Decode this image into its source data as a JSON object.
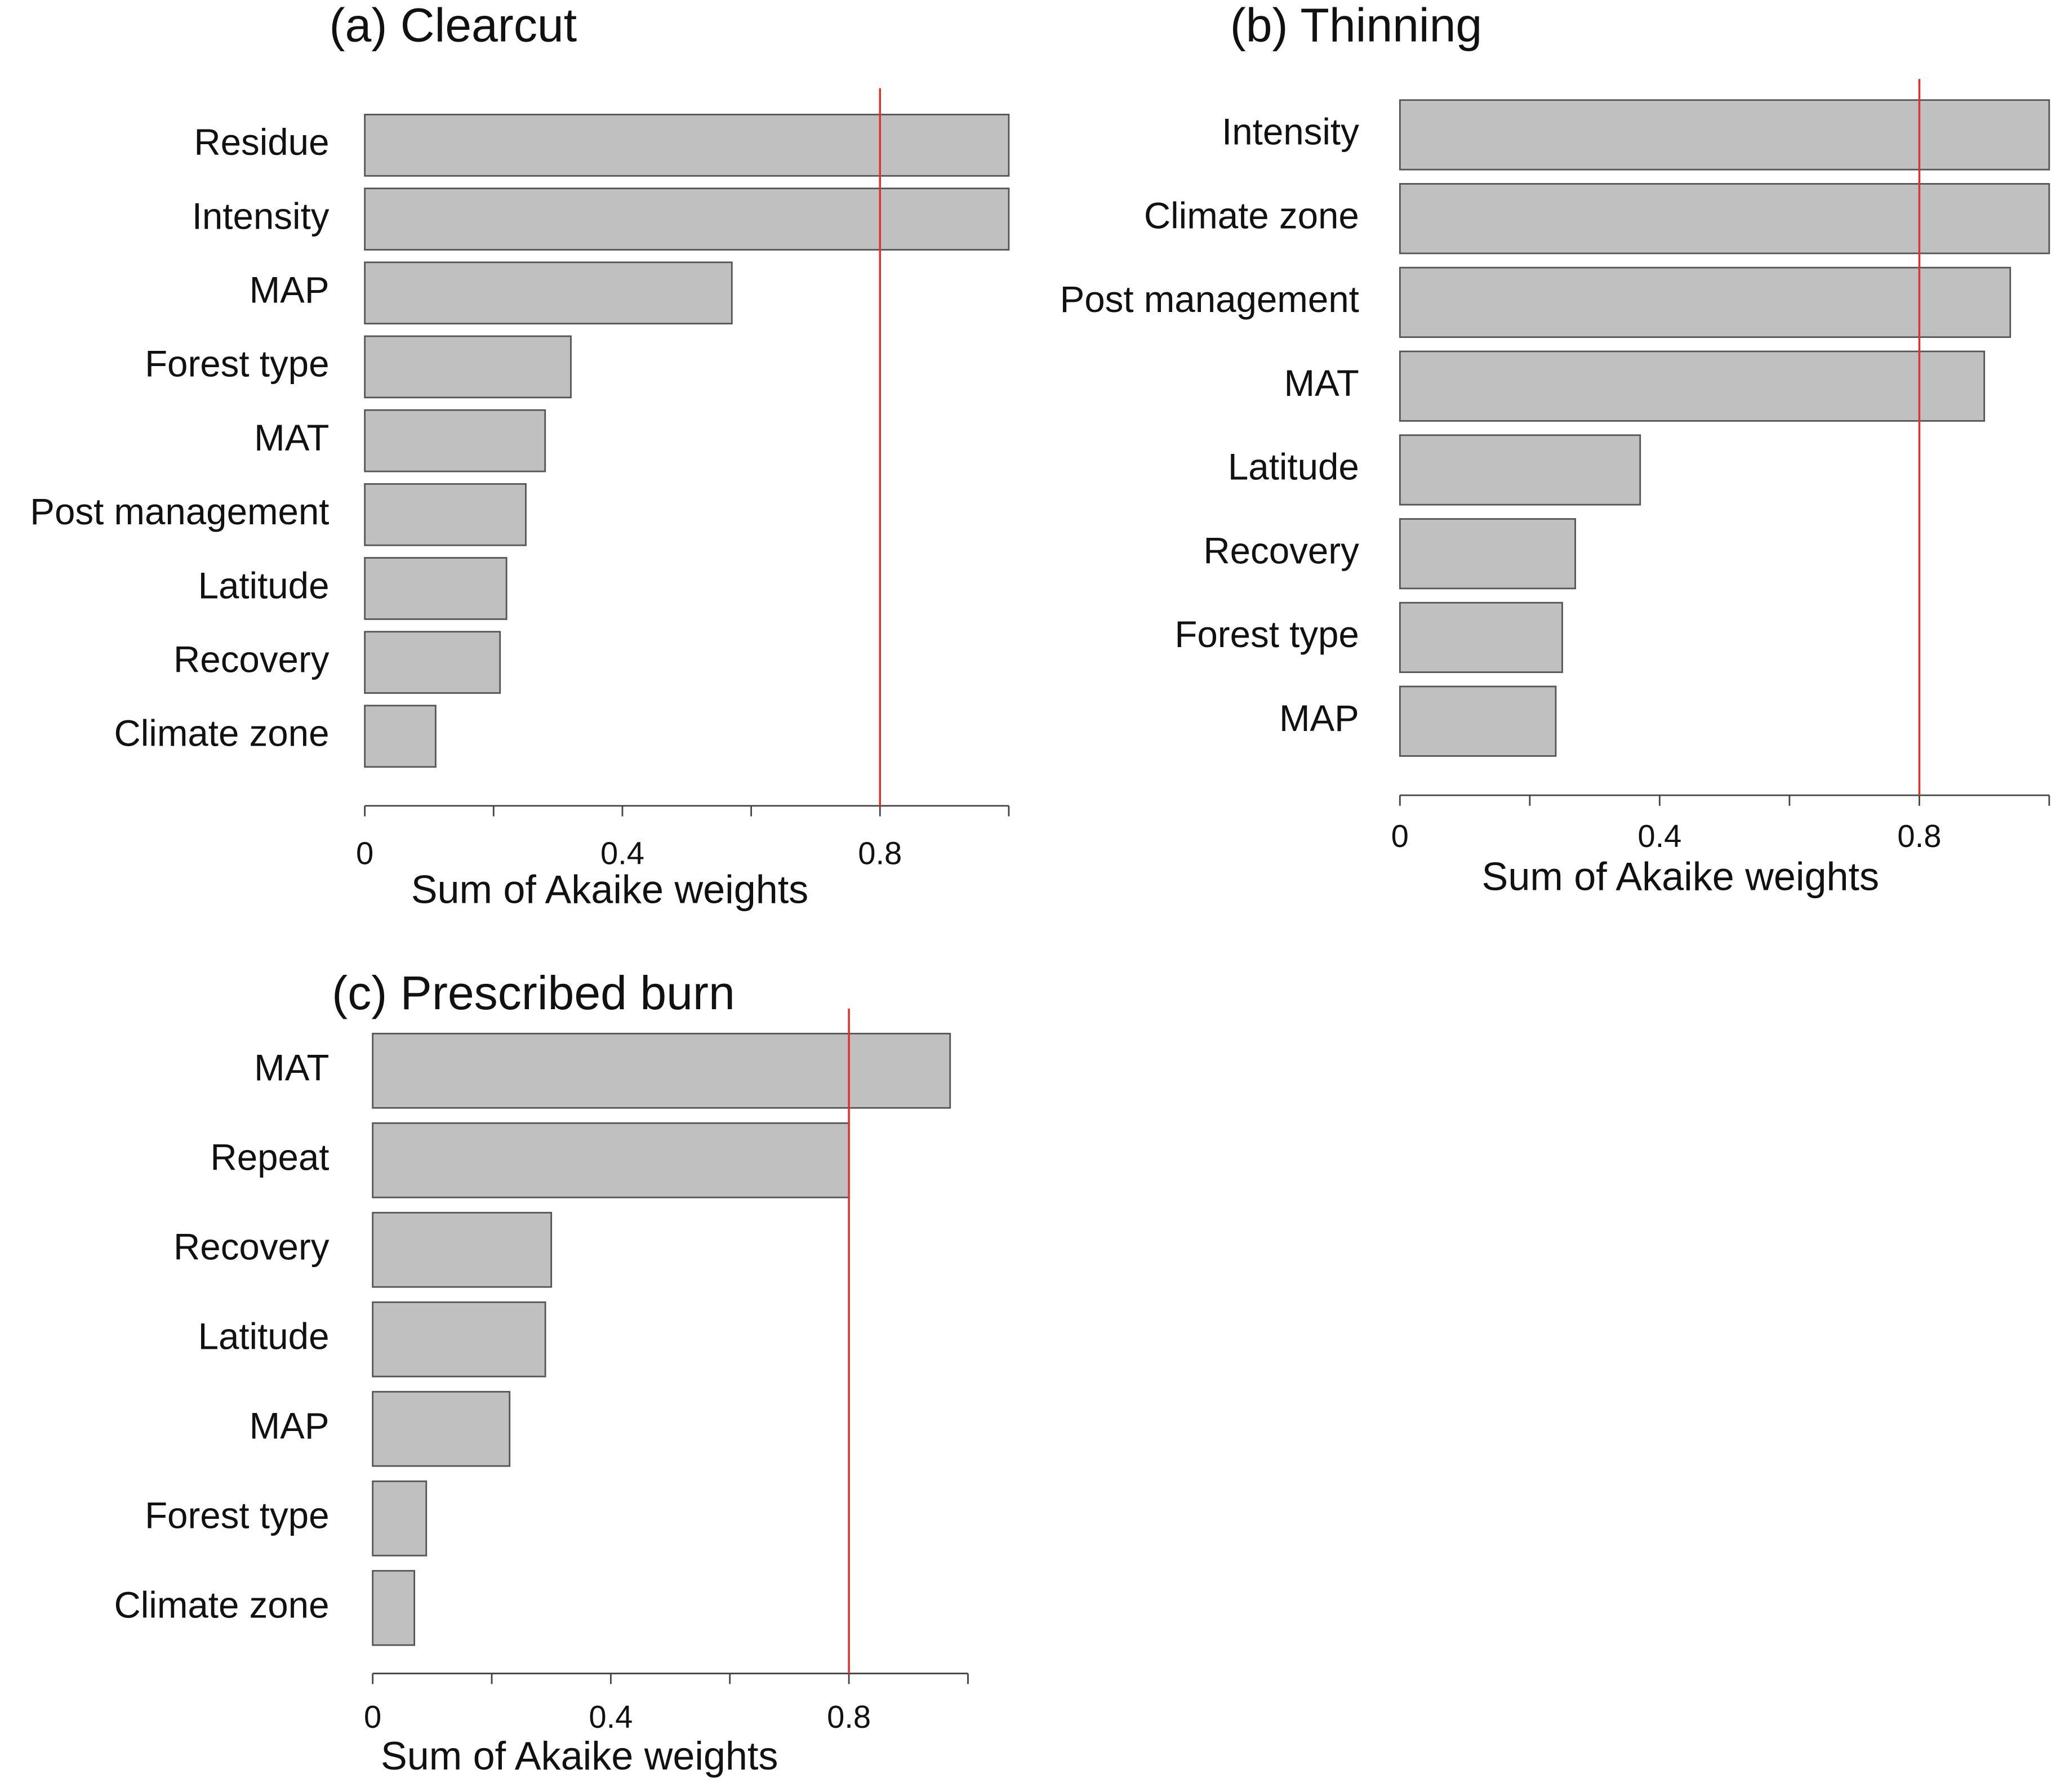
{
  "chart_data": [
    {
      "type": "bar",
      "orientation": "horizontal",
      "title": "(a) Clearcut",
      "categories": [
        "Residue",
        "Intensity",
        "MAP",
        "Forest type",
        "MAT",
        "Post management",
        "Latitude",
        "Recovery",
        "Climate zone"
      ],
      "values": [
        1.0,
        1.0,
        0.57,
        0.32,
        0.28,
        0.25,
        0.22,
        0.21,
        0.11
      ],
      "color": "#c0c0c0",
      "xlim": [
        0,
        1
      ],
      "xticks": [
        0,
        0.4,
        0.8
      ],
      "minor_xticks": [
        0.2,
        0.6,
        1.0
      ],
      "xlabel": "Sum of Akaike weights",
      "threshold": 0.8,
      "threshold_color": "#e03030"
    },
    {
      "type": "bar",
      "orientation": "horizontal",
      "title": "(b) Thinning",
      "categories": [
        "Intensity",
        "Climate zone",
        "Post management",
        "MAT",
        "Latitude",
        "Recovery",
        "Forest type",
        "MAP"
      ],
      "values": [
        1.0,
        1.0,
        0.94,
        0.9,
        0.37,
        0.27,
        0.25,
        0.24
      ],
      "color": "#c0c0c0",
      "xlim": [
        0,
        1
      ],
      "xticks": [
        0,
        0.4,
        0.8
      ],
      "minor_xticks": [
        0.2,
        0.6,
        1.0
      ],
      "xlabel": "Sum of Akaike weights",
      "threshold": 0.8,
      "threshold_color": "#e03030"
    },
    {
      "type": "bar",
      "orientation": "horizontal",
      "title": "(c) Prescribed burn",
      "categories": [
        "MAT",
        "Repeat",
        "Recovery",
        "Latitude",
        "MAP",
        "Forest type",
        "Climate zone"
      ],
      "values": [
        0.97,
        0.8,
        0.3,
        0.29,
        0.23,
        0.09,
        0.07
      ],
      "color": "#c0c0c0",
      "xlim": [
        0,
        1
      ],
      "xticks": [
        0,
        0.4,
        0.8
      ],
      "minor_xticks": [
        0.2,
        0.6,
        1.0
      ],
      "xlabel": "Sum of Akaike weights",
      "threshold": 0.8,
      "threshold_color": "#e03030"
    }
  ]
}
